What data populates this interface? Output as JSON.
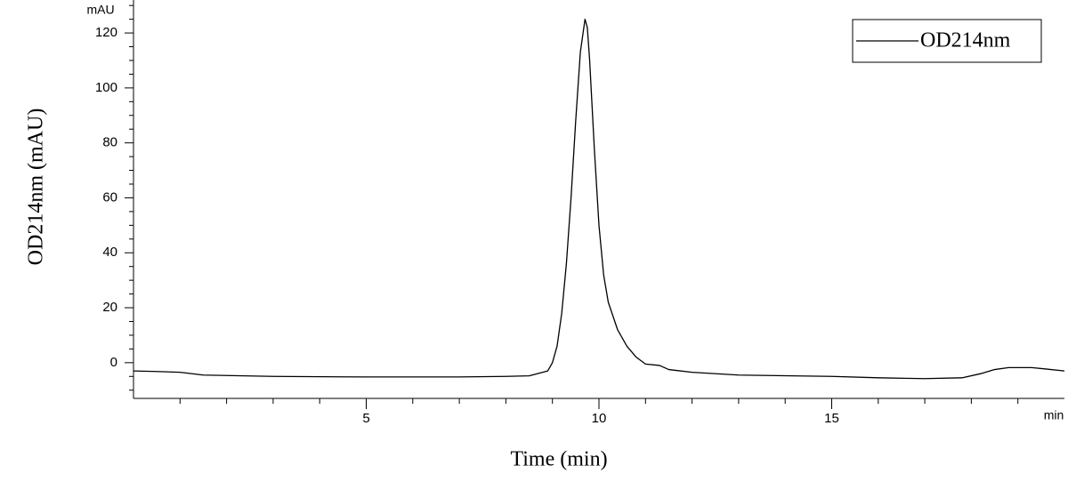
{
  "chart_data": {
    "type": "line",
    "y_title": "OD214nm (mAU)",
    "x_title": "Time (min)",
    "y_unit": "mAU",
    "x_unit": "min",
    "xlim": [
      0,
      20
    ],
    "ylim": [
      -13,
      132
    ],
    "xticks": [
      5,
      10,
      15
    ],
    "yticks": [
      0,
      20,
      40,
      60,
      80,
      100,
      120
    ],
    "xminorticks": [
      1,
      2,
      3,
      4,
      6,
      7,
      8,
      9,
      11,
      12,
      13,
      14,
      16,
      17,
      18,
      19
    ],
    "yminorticks": [
      -10,
      -5,
      5,
      10,
      15,
      25,
      30,
      35,
      45,
      50,
      55,
      65,
      70,
      75,
      85,
      90,
      95,
      105,
      110,
      115,
      125,
      130
    ],
    "grid": false,
    "legend": "top-right",
    "series": [
      {
        "name": "OD214nm",
        "color": "#000000",
        "x": [
          0,
          0.5,
          1,
          1.5,
          3,
          5,
          7,
          8,
          8.5,
          8.9,
          9.0,
          9.1,
          9.2,
          9.3,
          9.4,
          9.5,
          9.6,
          9.7,
          9.75,
          9.8,
          9.9,
          10.0,
          10.1,
          10.2,
          10.4,
          10.6,
          10.8,
          11.0,
          11.3,
          11.5,
          12,
          13,
          15,
          16,
          17,
          17.8,
          18.2,
          18.5,
          18.8,
          19.3,
          19.6,
          20
        ],
        "values": [
          -3,
          -3.2,
          -3.5,
          -4.5,
          -5,
          -5.2,
          -5.2,
          -5,
          -4.8,
          -3,
          0,
          6,
          18,
          36,
          60,
          88,
          113,
          125,
          122,
          110,
          78,
          50,
          32,
          22,
          12,
          6,
          2,
          -0.5,
          -1,
          -2.5,
          -3.5,
          -4.5,
          -5,
          -5.5,
          -5.8,
          -5.5,
          -4,
          -2.5,
          -1.8,
          -1.8,
          -2.3,
          -3
        ]
      }
    ]
  }
}
